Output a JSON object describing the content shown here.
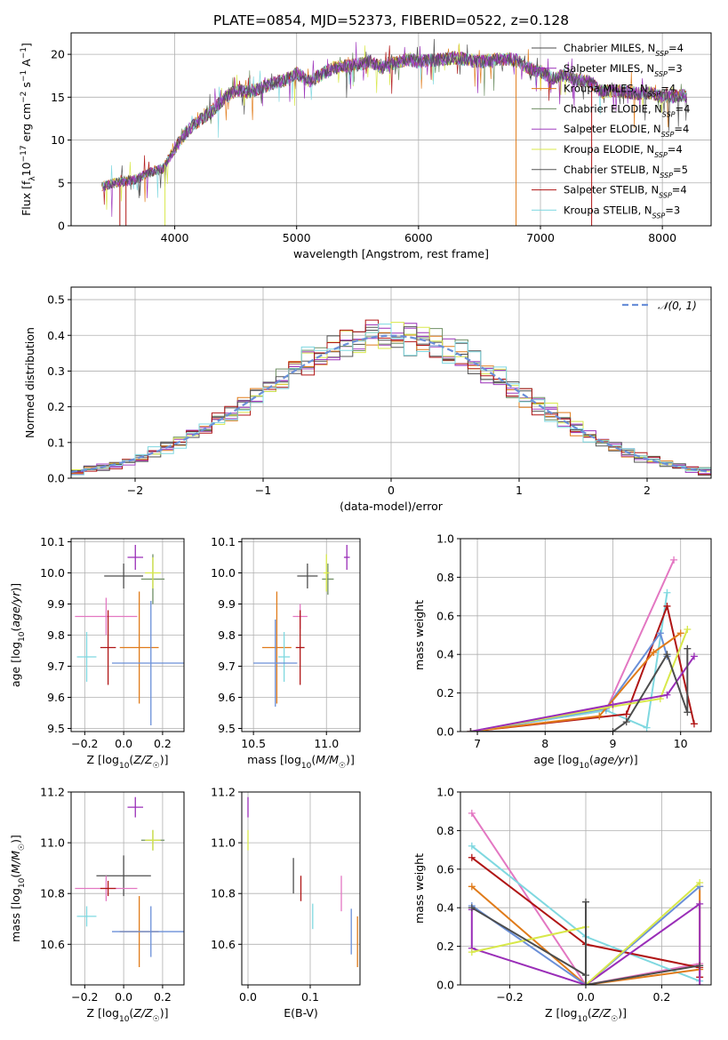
{
  "figure": {
    "title": "PLATE=0854, MJD=52373, FIBERID=0522, z=0.128"
  },
  "models": [
    {
      "name": "Chabrier MILES, N_SSP=4",
      "color": "#4d4d4d"
    },
    {
      "name": "Salpeter MILES, N_SSP=3",
      "color": "#9a2eb8"
    },
    {
      "name": "Kroupa MILES, N_SSP=4",
      "color": "#e07b1a"
    },
    {
      "name": "Chabrier ELODIE, N_SSP=4",
      "color": "#6f8f64"
    },
    {
      "name": "Salpeter ELODIE, N_SSP=4",
      "color": "#a23ec0"
    },
    {
      "name": "Kroupa ELODIE, N_SSP=4",
      "color": "#d8e84a"
    },
    {
      "name": "Chabrier STELIB, N_SSP=5",
      "color": "#555555"
    },
    {
      "name": "Salpeter STELIB, N_SSP=4",
      "color": "#b01515"
    },
    {
      "name": "Kroupa STELIB, N_SSP=3",
      "color": "#7fd8e0"
    }
  ],
  "chart_data": [
    {
      "id": "spectrum",
      "type": "line",
      "title": "PLATE=0854, MJD=52373, FIBERID=0522, z=0.128",
      "xlabel": "wavelength [Angstrom, rest frame]",
      "ylabel": "Flux [f_λ 10^-17 erg cm^-2 s^-1 A^-1]",
      "xlim": [
        3150,
        8400
      ],
      "ylim": [
        0,
        22.5
      ],
      "xticks": [
        4000,
        5000,
        6000,
        7000,
        8000
      ],
      "yticks": [
        0,
        5,
        10,
        15,
        20
      ],
      "continuum": {
        "x": [
          3400,
          3500,
          3600,
          3700,
          3800,
          3900,
          4000,
          4100,
          4200,
          4300,
          4400,
          4500,
          4600,
          4700,
          4800,
          4900,
          5000,
          5100,
          5200,
          5300,
          5400,
          5500,
          5600,
          5700,
          5800,
          5900,
          6000,
          6100,
          6200,
          6300,
          6400,
          6500,
          6600,
          6700,
          6800,
          6900,
          7000,
          7100,
          7200,
          7300,
          7400,
          7500,
          7600,
          7700,
          7800,
          7900,
          8000,
          8100,
          8200
        ],
        "y": [
          4.5,
          5.0,
          5.2,
          5.5,
          6.3,
          6.6,
          9.0,
          11.0,
          12.3,
          13.3,
          14.8,
          15.8,
          15.6,
          16.0,
          16.6,
          17.0,
          17.8,
          16.8,
          17.6,
          18.4,
          18.6,
          18.8,
          19.2,
          18.4,
          19.0,
          19.4,
          19.1,
          19.3,
          19.4,
          19.6,
          19.4,
          19.1,
          19.3,
          19.5,
          19.3,
          18.4,
          18.0,
          17.2,
          17.6,
          17.0,
          16.8,
          15.6,
          15.8,
          15.6,
          15.4,
          15.5,
          15.0,
          15.1,
          15.2
        ]
      },
      "range_start": 3400,
      "range_end": 8200,
      "dropouts": [
        3550,
        3600,
        3920,
        6800,
        7420
      ]
    },
    {
      "id": "residuals",
      "type": "histogram",
      "xlabel": "(data-model)/error",
      "ylabel": "Normed distribution",
      "xlim": [
        -2.5,
        2.5
      ],
      "ylim": [
        0,
        0.535
      ],
      "xticks": [
        -2,
        -1,
        0,
        1,
        2
      ],
      "xtick_labels": [
        "−2",
        "−1",
        "0",
        "1",
        "2"
      ],
      "yticks": [
        0.0,
        0.1,
        0.2,
        0.3,
        0.4,
        0.5
      ],
      "bin_width": 0.1,
      "reference": {
        "name": "𝒩(0, 1)",
        "mean": 0,
        "sigma": 1,
        "color": "#6a8fd8"
      }
    },
    {
      "id": "age-vs-Z",
      "type": "scatter",
      "xlabel": "Z [log10(Z/Z☉)]",
      "ylabel": "age [log10(age/yr)]",
      "xlim": [
        -0.27,
        0.31
      ],
      "ylim": [
        9.49,
        10.11
      ],
      "xticks": [
        -0.2,
        0.0,
        0.2
      ],
      "xtick_labels": [
        "−0.2",
        "0.0",
        "0.2"
      ],
      "yticks": [
        9.5,
        9.6,
        9.7,
        9.8,
        9.9,
        10.0,
        10.1
      ],
      "points": [
        {
          "x": 0.06,
          "y": 10.05,
          "xerr": 0.04,
          "yerr": 0.04,
          "color": "#9a2eb8"
        },
        {
          "x": 0.0,
          "y": 9.99,
          "xerr": 0.1,
          "yerr": 0.04,
          "color": "#4d4d4d"
        },
        {
          "x": 0.15,
          "y": 9.98,
          "xerr": 0.06,
          "yerr": 0.08,
          "color": "#6f8f64"
        },
        {
          "x": 0.15,
          "y": 10.0,
          "xerr": 0.04,
          "yerr": 0.05,
          "color": "#d8e84a"
        },
        {
          "x": -0.09,
          "y": 9.86,
          "xerr": 0.16,
          "yerr": 0.06,
          "color": "#e377c2"
        },
        {
          "x": -0.08,
          "y": 9.76,
          "xerr": 0.04,
          "yerr": 0.12,
          "color": "#b01515"
        },
        {
          "x": 0.08,
          "y": 9.76,
          "xerr": 0.1,
          "yerr": 0.18,
          "color": "#e07b1a"
        },
        {
          "x": -0.19,
          "y": 9.73,
          "xerr": 0.05,
          "yerr": 0.08,
          "color": "#7fd8e0"
        },
        {
          "x": 0.14,
          "y": 9.71,
          "xerr": 0.2,
          "yerr": 0.2,
          "color": "#6a8fd8"
        }
      ]
    },
    {
      "id": "age-vs-mass",
      "type": "scatter",
      "xlabel": "mass [log10(M/M☉)]",
      "ylabel": "",
      "xlim": [
        10.42,
        11.23
      ],
      "ylim": [
        9.49,
        10.11
      ],
      "xticks": [
        10.5,
        11.0
      ],
      "xtick_labels": [
        "10.5",
        "11.0"
      ],
      "yticks": [
        9.5,
        9.6,
        9.7,
        9.8,
        9.9,
        10.0,
        10.1
      ],
      "points": [
        {
          "x": 11.14,
          "y": 10.05,
          "xerr": 0.02,
          "yerr": 0.04,
          "color": "#9a2eb8"
        },
        {
          "x": 10.87,
          "y": 9.99,
          "xerr": 0.07,
          "yerr": 0.04,
          "color": "#4d4d4d"
        },
        {
          "x": 11.01,
          "y": 9.98,
          "xerr": 0.04,
          "yerr": 0.05,
          "color": "#6f8f64"
        },
        {
          "x": 11.0,
          "y": 10.0,
          "xerr": 0.02,
          "yerr": 0.06,
          "color": "#d8e84a"
        },
        {
          "x": 10.82,
          "y": 9.86,
          "xerr": 0.05,
          "yerr": 0.04,
          "color": "#e377c2"
        },
        {
          "x": 10.82,
          "y": 9.76,
          "xerr": 0.03,
          "yerr": 0.12,
          "color": "#b01515"
        },
        {
          "x": 10.66,
          "y": 9.76,
          "xerr": 0.1,
          "yerr": 0.18,
          "color": "#e07b1a"
        },
        {
          "x": 10.71,
          "y": 9.73,
          "xerr": 0.04,
          "yerr": 0.08,
          "color": "#7fd8e0"
        },
        {
          "x": 10.65,
          "y": 9.71,
          "xerr": 0.15,
          "yerr": 0.14,
          "color": "#6a8fd8"
        }
      ]
    },
    {
      "id": "massweight-vs-age",
      "type": "line",
      "xlabel": "age [log10(age/yr)]",
      "ylabel": "mass weight",
      "xlim": [
        6.75,
        10.45
      ],
      "ylim": [
        0.0,
        1.0
      ],
      "xticks": [
        7,
        8,
        9,
        10
      ],
      "yticks": [
        0.0,
        0.2,
        0.4,
        0.6,
        0.8,
        1.0
      ],
      "series": [
        {
          "color": "#e377c2",
          "x": [
            6.9,
            8.9,
            9.9
          ],
          "y": [
            0.0,
            0.11,
            0.89
          ]
        },
        {
          "color": "#7fd8e0",
          "x": [
            6.9,
            8.9,
            9.5,
            9.8
          ],
          "y": [
            0.0,
            0.11,
            0.02,
            0.72
          ]
        },
        {
          "color": "#b01515",
          "x": [
            6.9,
            9.2,
            9.8,
            10.2
          ],
          "y": [
            0.0,
            0.09,
            0.65,
            0.04
          ]
        },
        {
          "color": "#6a8fd8",
          "x": [
            6.9,
            8.9,
            9.7,
            9.8
          ],
          "y": [
            0.0,
            0.12,
            0.51,
            0.39
          ]
        },
        {
          "color": "#e07b1a",
          "x": [
            6.9,
            8.8,
            9.6,
            10.0
          ],
          "y": [
            0.0,
            0.08,
            0.41,
            0.51
          ]
        },
        {
          "color": "#d8e84a",
          "x": [
            6.9,
            9.0,
            9.7,
            10.1
          ],
          "y": [
            0.0,
            0.13,
            0.17,
            0.53
          ]
        },
        {
          "color": "#9a2eb8",
          "x": [
            6.9,
            9.0,
            9.8,
            10.2
          ],
          "y": [
            0.0,
            0.14,
            0.19,
            0.39
          ]
        },
        {
          "color": "#4d4d4d",
          "x": [
            6.9,
            9.0,
            9.2,
            9.8,
            10.1,
            10.1
          ],
          "y": [
            0.0,
            0.0,
            0.05,
            0.4,
            0.1,
            0.43
          ]
        }
      ]
    },
    {
      "id": "mass-vs-Z",
      "type": "scatter",
      "xlabel": "Z [log10(Z/Z☉)]",
      "ylabel": "mass [log10(M/M☉)]",
      "xlim": [
        -0.27,
        0.31
      ],
      "ylim": [
        10.44,
        11.2
      ],
      "xticks": [
        -0.2,
        0.0,
        0.2
      ],
      "xtick_labels": [
        "−0.2",
        "0.0",
        "0.2"
      ],
      "yticks": [
        10.6,
        10.8,
        11.0,
        11.2
      ],
      "points": [
        {
          "x": 0.06,
          "y": 11.14,
          "xerr": 0.04,
          "yerr": 0.04,
          "color": "#9a2eb8"
        },
        {
          "x": 0.15,
          "y": 11.01,
          "xerr": 0.06,
          "yerr": 0.04,
          "color": "#6f8f64"
        },
        {
          "x": 0.15,
          "y": 11.01,
          "xerr": 0.04,
          "yerr": 0.04,
          "color": "#d8e84a"
        },
        {
          "x": 0.0,
          "y": 10.87,
          "xerr": 0.14,
          "yerr": 0.08,
          "color": "#4d4d4d"
        },
        {
          "x": -0.09,
          "y": 10.82,
          "xerr": 0.16,
          "yerr": 0.05,
          "color": "#e377c2"
        },
        {
          "x": -0.08,
          "y": 10.82,
          "xerr": 0.04,
          "yerr": 0.03,
          "color": "#b01515"
        },
        {
          "x": -0.19,
          "y": 10.71,
          "xerr": 0.05,
          "yerr": 0.04,
          "color": "#7fd8e0"
        },
        {
          "x": 0.08,
          "y": 10.65,
          "xerr": 0.1,
          "yerr": 0.14,
          "color": "#e07b1a"
        },
        {
          "x": 0.14,
          "y": 10.65,
          "xerr": 0.2,
          "yerr": 0.1,
          "color": "#6a8fd8"
        }
      ]
    },
    {
      "id": "mass-vs-ebv",
      "type": "scatter",
      "xlabel": "E(B-V)",
      "ylabel": "",
      "xlim": [
        -0.01,
        0.18
      ],
      "ylim": [
        10.44,
        11.2
      ],
      "xticks": [
        0.0,
        0.1
      ],
      "xtick_labels": [
        "0.0",
        "0.1"
      ],
      "yticks": [
        10.6,
        10.8,
        11.0,
        11.2
      ],
      "points": [
        {
          "x": 0.0,
          "y": 11.14,
          "yerr": 0.04,
          "color": "#9a2eb8"
        },
        {
          "x": 0.0,
          "y": 11.01,
          "yerr": 0.04,
          "color": "#d8e84a"
        },
        {
          "x": 0.073,
          "y": 10.87,
          "yerr": 0.07,
          "color": "#4d4d4d"
        },
        {
          "x": 0.085,
          "y": 10.82,
          "yerr": 0.05,
          "color": "#b01515"
        },
        {
          "x": 0.104,
          "y": 10.71,
          "yerr": 0.05,
          "color": "#7fd8e0"
        },
        {
          "x": 0.15,
          "y": 10.8,
          "yerr": 0.07,
          "color": "#e377c2"
        },
        {
          "x": 0.166,
          "y": 10.65,
          "yerr": 0.09,
          "color": "#6a8fd8"
        },
        {
          "x": 0.176,
          "y": 10.61,
          "yerr": 0.1,
          "color": "#e07b1a"
        }
      ]
    },
    {
      "id": "massweight-vs-Z",
      "type": "line",
      "xlabel": "Z [log10(Z/Z☉)]",
      "ylabel": "mass weight",
      "xlim": [
        -0.33,
        0.33
      ],
      "ylim": [
        0.0,
        1.0
      ],
      "xticks": [
        -0.2,
        0.0,
        0.2
      ],
      "xtick_labels": [
        "−0.2",
        "0.0",
        "0.2"
      ],
      "yticks": [
        0.0,
        0.2,
        0.4,
        0.6,
        0.8,
        1.0
      ],
      "series": [
        {
          "color": "#e377c2",
          "x": [
            -0.3,
            0.0,
            0.3
          ],
          "y": [
            0.89,
            0.0,
            0.11
          ]
        },
        {
          "color": "#7fd8e0",
          "x": [
            -0.3,
            0.0,
            0.3
          ],
          "y": [
            0.72,
            0.25,
            0.02
          ]
        },
        {
          "color": "#b01515",
          "x": [
            -0.3,
            0.0,
            0.3,
            0.3
          ],
          "y": [
            0.66,
            0.21,
            0.09,
            0.04
          ]
        },
        {
          "color": "#e07b1a",
          "x": [
            -0.3,
            0.0,
            0.3,
            0.3
          ],
          "y": [
            0.51,
            0.0,
            0.08,
            0.51
          ]
        },
        {
          "color": "#6a8fd8",
          "x": [
            -0.3,
            0.0,
            0.3
          ],
          "y": [
            0.41,
            0.0,
            0.51
          ]
        },
        {
          "color": "#9a2eb8",
          "x": [
            -0.3,
            -0.3,
            0.0,
            0.3,
            0.3
          ],
          "y": [
            0.39,
            0.19,
            0.0,
            0.42,
            0.0
          ]
        },
        {
          "color": "#d8e84a",
          "x": [
            -0.3,
            0.0,
            0.0,
            0.3
          ],
          "y": [
            0.17,
            0.3,
            0.0,
            0.53
          ]
        },
        {
          "color": "#4d4d4d",
          "x": [
            -0.3,
            0.0,
            0.0,
            0.0,
            0.3
          ],
          "y": [
            0.4,
            0.05,
            0.43,
            0.0,
            0.1
          ]
        }
      ]
    }
  ]
}
